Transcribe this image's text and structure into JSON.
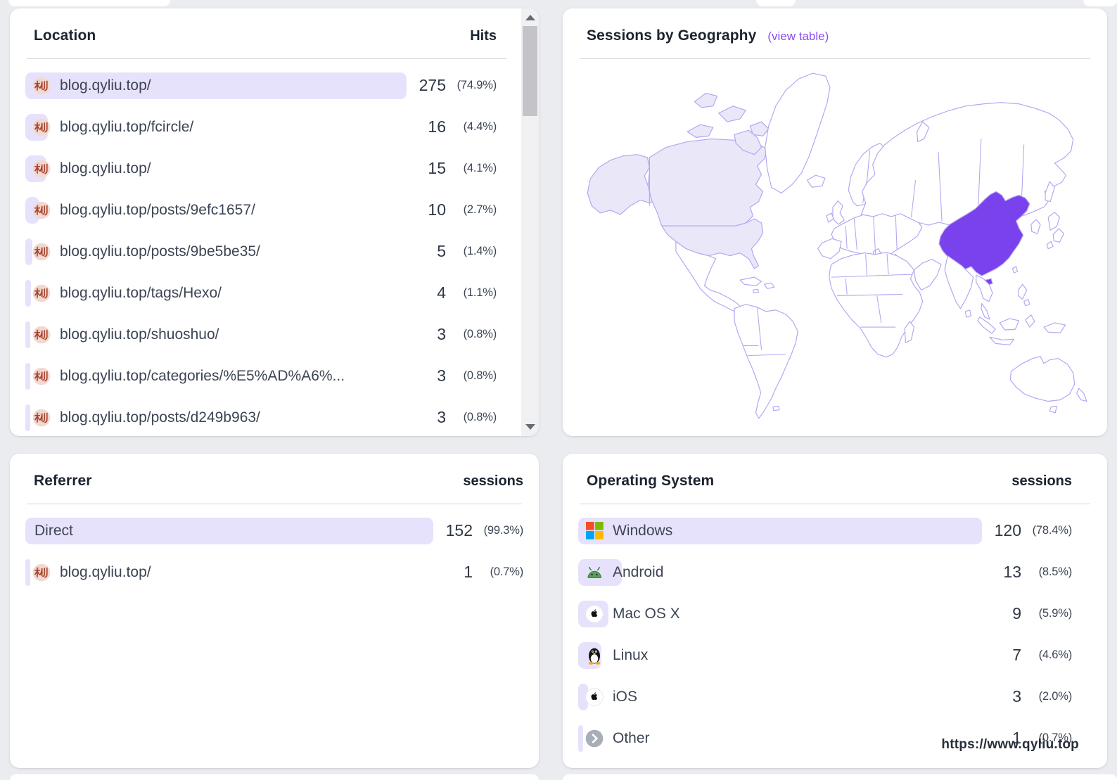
{
  "colors": {
    "accent_purple": "#7a42ec",
    "map_border": "#b4a5f1",
    "map_light_fill": "#eae7f9",
    "row_bar": "#e7e2fb",
    "link": "#8a4cf0",
    "page_background": "#eaecf0"
  },
  "cards": {
    "locations": {
      "title": "Location",
      "metric": "Hits",
      "rows": [
        {
          "icon": "favicon",
          "label": "blog.qyliu.top/",
          "value": 275,
          "value_text": "275",
          "pct": "(74.9%)"
        },
        {
          "icon": "favicon",
          "label": "blog.qyliu.top/fcircle/",
          "value": 16,
          "value_text": "16",
          "pct": "(4.4%)"
        },
        {
          "icon": "favicon",
          "label": "blog.qyliu.top/",
          "value": 15,
          "value_text": "15",
          "pct": "(4.1%)"
        },
        {
          "icon": "favicon",
          "label": "blog.qyliu.top/posts/9efc1657/",
          "value": 10,
          "value_text": "10",
          "pct": "(2.7%)"
        },
        {
          "icon": "favicon",
          "label": "blog.qyliu.top/posts/9be5be35/",
          "value": 5,
          "value_text": "5",
          "pct": "(1.4%)"
        },
        {
          "icon": "favicon",
          "label": "blog.qyliu.top/tags/Hexo/",
          "value": 4,
          "value_text": "4",
          "pct": "(1.1%)"
        },
        {
          "icon": "favicon",
          "label": "blog.qyliu.top/shuoshuo/",
          "value": 3,
          "value_text": "3",
          "pct": "(0.8%)"
        },
        {
          "icon": "favicon",
          "label": "blog.qyliu.top/categories/%E5%AD%A6%...",
          "value": 3,
          "value_text": "3",
          "pct": "(0.8%)"
        },
        {
          "icon": "favicon",
          "label": "blog.qyliu.top/posts/d249b963/",
          "value": 3,
          "value_text": "3",
          "pct": "(0.8%)"
        }
      ]
    },
    "geography": {
      "title": "Sessions by Geography",
      "link_label": "(view table)",
      "highlighted_regions": [
        {
          "name": "China",
          "color": "#7a42ec"
        },
        {
          "name": "North America",
          "color": "#eae7f9"
        }
      ]
    },
    "referrers": {
      "title": "Referrer",
      "metric": "sessions",
      "rows": [
        {
          "icon": "none",
          "label": "Direct",
          "value": 152,
          "value_text": "152",
          "pct": "(99.3%)"
        },
        {
          "icon": "favicon",
          "label": "blog.qyliu.top/",
          "value": 1,
          "value_text": "1",
          "pct": "(0.7%)"
        }
      ]
    },
    "os": {
      "title": "Operating System",
      "metric": "sessions",
      "rows": [
        {
          "icon": "windows",
          "label": "Windows",
          "value": 120,
          "value_text": "120",
          "pct": "(78.4%)"
        },
        {
          "icon": "android",
          "label": "Android",
          "value": 13,
          "value_text": "13",
          "pct": "(8.5%)"
        },
        {
          "icon": "apple",
          "label": "Mac OS X",
          "value": 9,
          "value_text": "9",
          "pct": "(5.9%)"
        },
        {
          "icon": "linux",
          "label": "Linux",
          "value": 7,
          "value_text": "7",
          "pct": "(4.6%)"
        },
        {
          "icon": "apple",
          "label": "iOS",
          "value": 3,
          "value_text": "3",
          "pct": "(2.0%)"
        },
        {
          "icon": "other",
          "label": "Other",
          "value": 1,
          "value_text": "1",
          "pct": "(0.7%)"
        }
      ]
    }
  },
  "watermark": "https://www.qyliu.top"
}
